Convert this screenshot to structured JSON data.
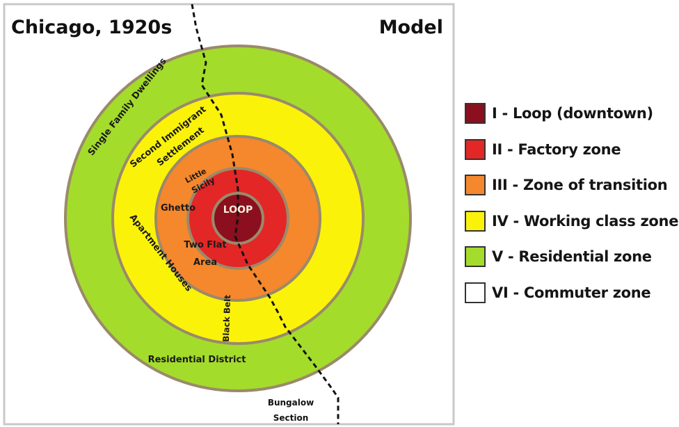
{
  "header": {
    "title": "Chicago, 1920s",
    "subtitle": "Model"
  },
  "zones": [
    {
      "id": "I",
      "label": "I - Loop (downtown)",
      "color": "#8b0f1e"
    },
    {
      "id": "II",
      "label": "II - Factory zone",
      "color": "#e32626"
    },
    {
      "id": "III",
      "label": "III - Zone of transition",
      "color": "#f5872c"
    },
    {
      "id": "IV",
      "label": "IV - Working class zone",
      "color": "#fbf20a"
    },
    {
      "id": "V",
      "label": "V - Residential zone",
      "color": "#a4dc2b"
    },
    {
      "id": "VI",
      "label": "VI - Commuter zone",
      "color": "#ffffff"
    }
  ],
  "map_labels": {
    "loop": "LOOP",
    "single_family": "Single Family Dwellings",
    "second_immigrant_1": "Second Immigrant",
    "second_immigrant_2": "Settlement",
    "little_1": "Little",
    "little_2": "Sicily",
    "ghetto": "Ghetto",
    "two_flat_1": "Two Flat",
    "two_flat_2": "Area",
    "apartment_houses": "Apartment Houses",
    "black_belt": "Black Belt",
    "residential_district": "Residential District",
    "bungalow_1": "Bungalow",
    "bungalow_2": "Section"
  }
}
